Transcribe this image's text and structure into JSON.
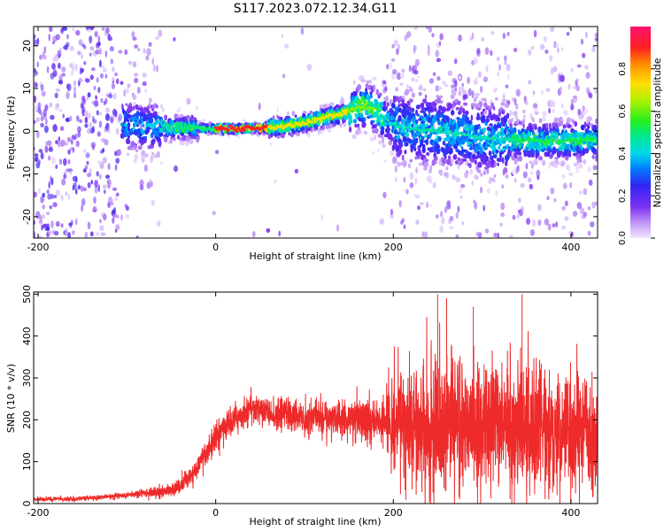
{
  "title": "S117.2023.072.12.34.G11",
  "colors": {
    "snr_line": "#ee2a2a",
    "axis": "#000000",
    "background": "#ffffff"
  },
  "chart_data": [
    {
      "type": "heatmap",
      "title": "S117.2023.072.12.34.G11",
      "xlabel": "Height of straight line (km)",
      "ylabel": "Frequency (Hz)",
      "xlim": [
        -205,
        430
      ],
      "ylim": [
        -25,
        24.5
      ],
      "xticks": [
        "-200",
        "0",
        "200",
        "400"
      ],
      "yticks": [
        "-20",
        "-10",
        "0",
        "10",
        "20"
      ],
      "colorbar": {
        "label": "Normalized spectral amplitude",
        "range": [
          0,
          1
        ],
        "ticks": [
          "0.0",
          "0.2",
          "0.4",
          "0.6",
          "0.8"
        ],
        "colormap": "rainbow (white-violet to red-magenta)"
      },
      "ridge_frequency_hz": {
        "x": [
          -100,
          -75,
          -50,
          -30,
          -10,
          0,
          20,
          50,
          80,
          100,
          120,
          140,
          160,
          170,
          180,
          190,
          200,
          220,
          250,
          280,
          300,
          330,
          360,
          390,
          420,
          430
        ],
        "y": [
          1.5,
          1.0,
          0.8,
          0.9,
          0.7,
          0.6,
          0.6,
          0.7,
          1.2,
          2.0,
          3.0,
          4.0,
          5.5,
          6.0,
          5.0,
          3.0,
          1.5,
          0.5,
          0.0,
          -0.8,
          -1.5,
          -2.0,
          -2.3,
          -2.3,
          -2.0,
          -2.0
        ]
      },
      "grid": false
    },
    {
      "type": "line",
      "xlabel": "Height of straight line (km)",
      "ylabel": "SNR (10 * v/v)",
      "xlim": [
        -205,
        430
      ],
      "ylim": [
        0,
        505
      ],
      "xticks": [
        "-200",
        "0",
        "200",
        "400"
      ],
      "yticks": [
        "0",
        "100",
        "200",
        "300",
        "400",
        "500"
      ],
      "series": [
        {
          "color": "#ee2a2a",
          "mean": {
            "x": [
              -205,
              -150,
              -100,
              -80,
              -60,
              -40,
              -30,
              -20,
              -10,
              0,
              20,
              40,
              60,
              80,
              100,
              120,
              140,
              160,
              180,
              200,
              220,
              250,
              300,
              350,
              400,
              430
            ],
            "y": [
              10,
              12,
              20,
              25,
              30,
              40,
              60,
              90,
              120,
              160,
              200,
              230,
              210,
              215,
              205,
              210,
              205,
              200,
              200,
              195,
              190,
              190,
              185,
              180,
              175,
              175
            ]
          },
          "spread": {
            "x": [
              -205,
              -100,
              -60,
              -30,
              0,
              50,
              100,
              150,
              190,
              200,
              220,
              250,
              300,
              350,
              400,
              430
            ],
            "y": [
              5,
              8,
              15,
              25,
              35,
              45,
              50,
              55,
              65,
              120,
              150,
              170,
              175,
              170,
              155,
              150
            ]
          },
          "peaks": [
            {
              "x": 250,
              "y": 500
            },
            {
              "x": 345,
              "y": 500
            },
            {
              "x": 290,
              "y": 470
            },
            {
              "x": 260,
              "y": 490
            }
          ]
        }
      ],
      "grid": false
    }
  ]
}
